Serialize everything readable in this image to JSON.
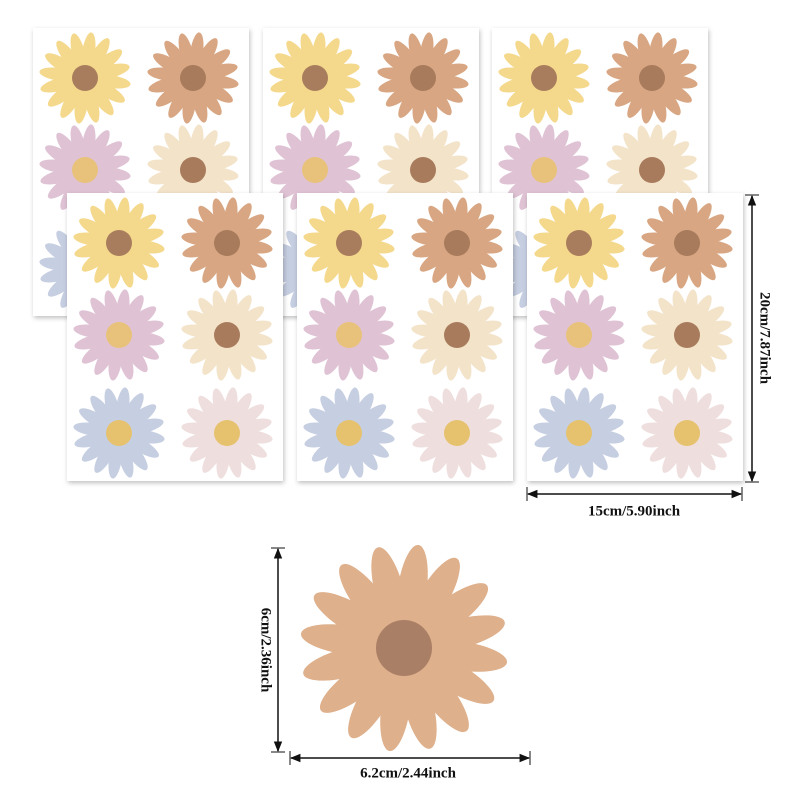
{
  "dimensions": {
    "sheet_height": "20cm/7.87inch",
    "sheet_width": "15cm/5.90inch",
    "flower_height": "6cm/2.36inch",
    "flower_width": "6.2cm/2.44inch"
  }
}
